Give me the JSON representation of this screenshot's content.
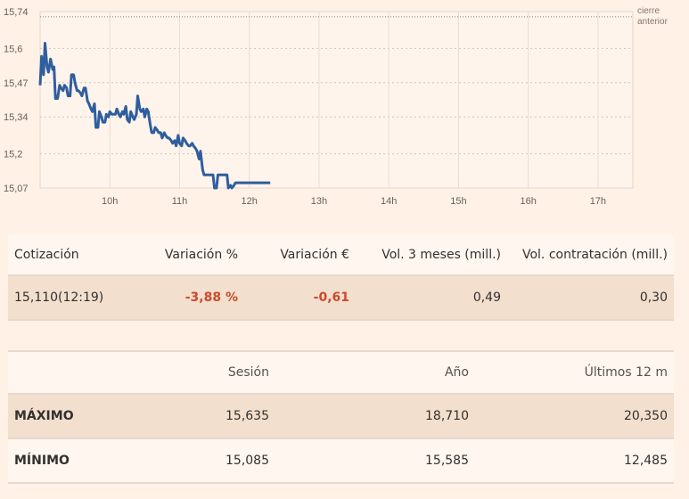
{
  "chart_data": {
    "type": "line",
    "y_ticks": [
      "15,74",
      "15,6",
      "15,47",
      "15,34",
      "15,2",
      "15,07"
    ],
    "ylim": [
      15.07,
      15.74
    ],
    "x_ticks": [
      "10h",
      "11h",
      "12h",
      "13h",
      "14h",
      "15h",
      "16h",
      "17h"
    ],
    "xlim": [
      9.0,
      17.5
    ],
    "reference": {
      "label_lines": [
        "cierre",
        "anterior"
      ],
      "value": 15.72
    },
    "line_color": "#2f5e9e",
    "grid": true,
    "series": [
      {
        "x": [
          9.0,
          9.02,
          9.05,
          9.07,
          9.1,
          9.12,
          9.15,
          9.18,
          9.2,
          9.22,
          9.25,
          9.28,
          9.3,
          9.33,
          9.35,
          9.38,
          9.4,
          9.43,
          9.45,
          9.48,
          9.5,
          9.53,
          9.55,
          9.58,
          9.6,
          9.63,
          9.65,
          9.68,
          9.7,
          9.73,
          9.75,
          9.78,
          9.8,
          9.83,
          9.85,
          9.88,
          9.9,
          9.93,
          9.95,
          9.98,
          10.0,
          10.03,
          10.05,
          10.08,
          10.1,
          10.13,
          10.15,
          10.18,
          10.2,
          10.23,
          10.25,
          10.28,
          10.3,
          10.33,
          10.35,
          10.38,
          10.4,
          10.43,
          10.45,
          10.48,
          10.5,
          10.53,
          10.55,
          10.58,
          10.6,
          10.63,
          10.65,
          10.68,
          10.7,
          10.73,
          10.75,
          10.78,
          10.8,
          10.83,
          10.85,
          10.88,
          10.9,
          10.93,
          10.95,
          10.98,
          11.0,
          11.03,
          11.05,
          11.08,
          11.1,
          11.13,
          11.15,
          11.18,
          11.2,
          11.23,
          11.25,
          11.28,
          11.3,
          11.33,
          11.35,
          11.38,
          11.4,
          11.43,
          11.45,
          11.48,
          11.5,
          11.53,
          11.55,
          11.58,
          11.6,
          11.63,
          11.65,
          11.68,
          11.7,
          11.73,
          11.75,
          11.78,
          11.8,
          11.83,
          11.85,
          11.88,
          11.9,
          11.93,
          11.95,
          11.98,
          12.0,
          12.03,
          12.05,
          12.08,
          12.1,
          12.13,
          12.15,
          12.18,
          12.2,
          12.25,
          12.3
        ],
        "y": [
          15.46,
          15.57,
          15.5,
          15.62,
          15.53,
          15.51,
          15.56,
          15.52,
          15.53,
          15.41,
          15.41,
          15.46,
          15.45,
          15.44,
          15.46,
          15.45,
          15.42,
          15.42,
          15.5,
          15.5,
          15.47,
          15.44,
          15.44,
          15.43,
          15.42,
          15.45,
          15.45,
          15.4,
          15.39,
          15.37,
          15.36,
          15.39,
          15.3,
          15.3,
          15.36,
          15.34,
          15.32,
          15.32,
          15.35,
          15.34,
          15.36,
          15.35,
          15.35,
          15.35,
          15.37,
          15.35,
          15.34,
          15.36,
          15.35,
          15.38,
          15.33,
          15.32,
          15.36,
          15.34,
          15.33,
          15.35,
          15.42,
          15.37,
          15.36,
          15.37,
          15.34,
          15.37,
          15.36,
          15.31,
          15.28,
          15.28,
          15.3,
          15.29,
          15.28,
          15.28,
          15.26,
          15.28,
          15.27,
          15.26,
          15.26,
          15.25,
          15.24,
          15.25,
          15.23,
          15.27,
          15.24,
          15.23,
          15.26,
          15.25,
          15.24,
          15.23,
          15.23,
          15.24,
          15.23,
          15.22,
          15.21,
          15.18,
          15.21,
          15.14,
          15.12,
          15.12,
          15.12,
          15.12,
          15.12,
          15.12,
          15.07,
          15.07,
          15.12,
          15.12,
          15.12,
          15.12,
          15.12,
          15.12,
          15.07,
          15.08,
          15.07,
          15.08,
          15.09,
          15.09,
          15.09,
          15.09,
          15.09,
          15.09,
          15.09,
          15.09,
          15.09,
          15.09,
          15.09,
          15.09,
          15.09,
          15.09,
          15.09,
          15.09,
          15.09,
          15.09,
          15.09
        ]
      }
    ]
  },
  "quote_table": {
    "headers": [
      "Cotización",
      "Variación %",
      "Variación €",
      "Vol. 3 meses (mill.)",
      "Vol. contratación (mill.)"
    ],
    "row": {
      "price": "15,110(12:19)",
      "change_pct": "-3,88 %",
      "change_eur": "-0,61",
      "vol_3m": "0,49",
      "vol_contract": "0,30"
    },
    "negative_color": "#cc4a2c"
  },
  "range_table": {
    "headers": [
      "",
      "Sesión",
      "Año",
      "Últimos 12 m"
    ],
    "rows": [
      {
        "label": "MÁXIMO",
        "session": "15,635",
        "year": "18,710",
        "last12": "20,350"
      },
      {
        "label": "MÍNIMO",
        "session": "15,085",
        "year": "15,585",
        "last12": "12,485"
      }
    ]
  }
}
